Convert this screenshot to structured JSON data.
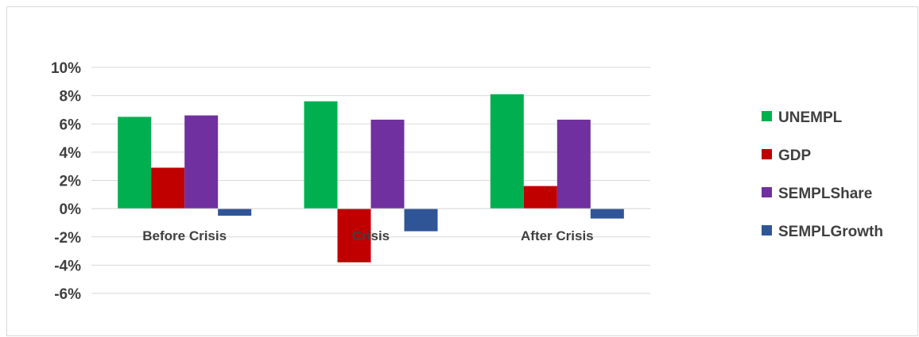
{
  "chart_data": {
    "type": "bar",
    "categories": [
      "Before Crisis",
      "Crisis",
      "After Crisis"
    ],
    "series": [
      {
        "name": "UNEMPL",
        "color": "#00b050",
        "values": [
          6.5,
          7.6,
          8.1
        ]
      },
      {
        "name": "GDP",
        "color": "#c00000",
        "values": [
          2.9,
          -3.8,
          1.6
        ]
      },
      {
        "name": "SEMPLShare",
        "color": "#7030a0",
        "values": [
          6.6,
          6.3,
          6.3
        ]
      },
      {
        "name": "SEMPLGrowth",
        "color": "#2f5597",
        "values": [
          -0.5,
          -1.6,
          -0.7
        ]
      }
    ],
    "ylim": [
      -6,
      10
    ],
    "yticks": [
      -6,
      -4,
      -2,
      0,
      2,
      4,
      6,
      8,
      10
    ],
    "ytick_labels": [
      "-6%",
      "-4%",
      "-2%",
      "0%",
      "2%",
      "4%",
      "6%",
      "8%",
      "10%"
    ],
    "grid": true,
    "legend": "right",
    "title": "",
    "xlabel": "",
    "ylabel": ""
  }
}
